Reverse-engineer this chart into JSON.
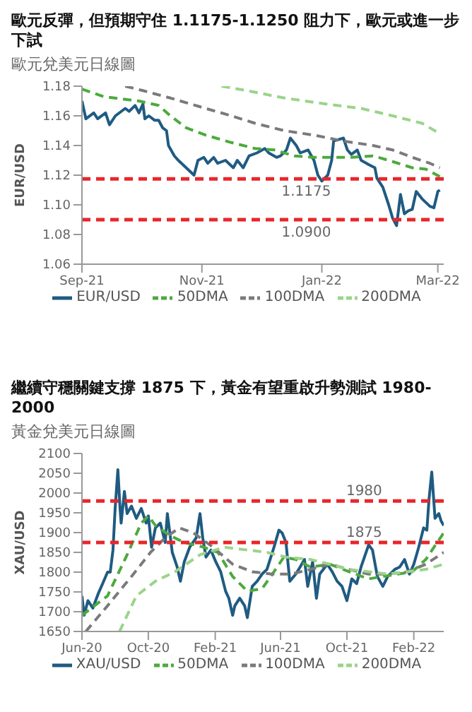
{
  "chart_data": [
    {
      "type": "line",
      "title": "歐元反彈，但預期守住 1.1175-1.1250 阻力下，歐元或進一步下試",
      "subtitle": "歐元兌美元日線圖",
      "ylabel": "EUR/USD",
      "xlim": [
        "2021-09-01",
        "2022-03-04"
      ],
      "xticks": [
        {
          "value": "2021-09-01",
          "label": "Sep-21"
        },
        {
          "value": "2021-11-01",
          "label": "Nov-21"
        },
        {
          "value": "2022-01-01",
          "label": "Jan-22"
        },
        {
          "value": "2022-03-01",
          "label": "Mar-22"
        }
      ],
      "ylim": [
        1.06,
        1.18
      ],
      "yticks": [
        1.06,
        1.08,
        {
          "value": 1.1,
          "label": "1.10"
        },
        1.12,
        1.14,
        1.16,
        1.18
      ],
      "legend": "bottom",
      "grid": false,
      "marker": "none",
      "ref_lines": [
        {
          "axis": "y",
          "value": 1.1175,
          "label": "1.1175",
          "color": "#e8262b",
          "line_style": "dashed"
        },
        {
          "axis": "y",
          "value": 1.09,
          "label": "1.0900",
          "color": "#e8262b",
          "line_style": "dashed"
        }
      ],
      "series": [
        {
          "name": "EUR/USD",
          "color": "#1f5b82",
          "line_style": "solid",
          "x": [
            "2021-09-01",
            "2021-09-03",
            "2021-09-07",
            "2021-09-09",
            "2021-09-13",
            "2021-09-15",
            "2021-09-18",
            "2021-09-23",
            "2021-09-25",
            "2021-09-28",
            "2021-09-30",
            "2021-10-02",
            "2021-10-03",
            "2021-10-05",
            "2021-10-08",
            "2021-10-10",
            "2021-10-12",
            "2021-10-14",
            "2021-10-15",
            "2021-10-18",
            "2021-10-20",
            "2021-10-24",
            "2021-10-28",
            "2021-10-30",
            "2021-11-02",
            "2021-11-04",
            "2021-11-07",
            "2021-11-09",
            "2021-11-13",
            "2021-11-17",
            "2021-11-19",
            "2021-11-22",
            "2021-11-25",
            "2021-11-29",
            "2021-12-03",
            "2021-12-05",
            "2021-12-09",
            "2021-12-11",
            "2021-12-14",
            "2021-12-16",
            "2021-12-19",
            "2021-12-21",
            "2021-12-25",
            "2021-12-28",
            "2021-12-30",
            "2022-01-01",
            "2022-01-04",
            "2022-01-06",
            "2022-01-07",
            "2022-01-12",
            "2022-01-14",
            "2022-01-16",
            "2022-01-19",
            "2022-01-21",
            "2022-01-25",
            "2022-01-28",
            "2022-01-29",
            "2022-02-01",
            "2022-02-04",
            "2022-02-06",
            "2022-02-08",
            "2022-02-10",
            "2022-02-12",
            "2022-02-14",
            "2022-02-16",
            "2022-02-18",
            "2022-02-21",
            "2022-02-25",
            "2022-02-27",
            "2022-03-01",
            "2022-03-02"
          ],
          "values": [
            1.17,
            1.158,
            1.162,
            1.158,
            1.162,
            1.154,
            1.16,
            1.165,
            1.163,
            1.167,
            1.162,
            1.168,
            1.158,
            1.16,
            1.157,
            1.157,
            1.152,
            1.15,
            1.14,
            1.133,
            1.13,
            1.125,
            1.12,
            1.13,
            1.132,
            1.128,
            1.132,
            1.128,
            1.13,
            1.125,
            1.13,
            1.125,
            1.133,
            1.135,
            1.138,
            1.135,
            1.132,
            1.133,
            1.137,
            1.145,
            1.14,
            1.135,
            1.137,
            1.13,
            1.12,
            1.116,
            1.12,
            1.13,
            1.143,
            1.145,
            1.137,
            1.134,
            1.137,
            1.13,
            1.127,
            1.125,
            1.118,
            1.112,
            1.1,
            1.091,
            1.086,
            1.107,
            1.094,
            1.096,
            1.097,
            1.109,
            1.104,
            1.099,
            1.098,
            1.109,
            1.11
          ]
        },
        {
          "name": "50DMA",
          "color": "#4caa3c",
          "line_style": "dashed",
          "x": [
            "2021-09-01",
            "2021-09-12",
            "2021-09-30",
            "2021-10-10",
            "2021-10-16",
            "2021-10-24",
            "2021-11-03",
            "2021-11-16",
            "2021-11-28",
            "2021-12-08",
            "2021-12-18",
            "2021-12-28",
            "2022-01-07",
            "2022-01-16",
            "2022-01-27",
            "2022-02-04",
            "2022-02-16",
            "2022-02-23",
            "2022-03-02"
          ],
          "values": [
            1.178,
            1.173,
            1.17,
            1.167,
            1.16,
            1.152,
            1.147,
            1.142,
            1.138,
            1.137,
            1.133,
            1.132,
            1.132,
            1.132,
            1.133,
            1.13,
            1.125,
            1.124,
            1.119
          ]
        },
        {
          "name": "100DMA",
          "color": "#7a7a7a",
          "line_style": "dashed",
          "x": [
            "2021-09-23",
            "2021-10-02",
            "2021-10-16",
            "2021-11-03",
            "2021-11-16",
            "2021-11-28",
            "2021-12-13",
            "2021-12-28",
            "2022-01-12",
            "2022-01-27",
            "2022-02-06",
            "2022-02-16",
            "2022-02-25",
            "2022-03-02"
          ],
          "values": [
            1.18,
            1.177,
            1.172,
            1.165,
            1.16,
            1.155,
            1.15,
            1.147,
            1.143,
            1.14,
            1.137,
            1.132,
            1.128,
            1.125
          ]
        },
        {
          "name": "200DMA",
          "color": "#9bd48a",
          "line_style": "dashed",
          "x": [
            "2021-11-11",
            "2021-11-24",
            "2021-12-13",
            "2022-01-03",
            "2022-01-21",
            "2022-02-06",
            "2022-02-21",
            "2022-03-02"
          ],
          "values": [
            1.18,
            1.177,
            1.172,
            1.168,
            1.165,
            1.16,
            1.155,
            1.148
          ]
        }
      ]
    },
    {
      "type": "line",
      "title": "繼續守穩關鍵支撐 1875 下，黃金有望重啟升勢測試 1980-2000",
      "subtitle": "黃金兌美元日線圖",
      "ylabel": "XAU/USD",
      "xlim": [
        "2020-06-01",
        "2022-03-28"
      ],
      "xticks": [
        {
          "value": "2020-06-01",
          "label": "Jun-20"
        },
        {
          "value": "2020-10-01",
          "label": "Oct-20"
        },
        {
          "value": "2021-02-01",
          "label": "Feb-21"
        },
        {
          "value": "2021-06-01",
          "label": "Jun-21"
        },
        {
          "value": "2021-10-01",
          "label": "Oct-21"
        },
        {
          "value": "2022-02-01",
          "label": "Feb-22"
        }
      ],
      "ylim": [
        1650,
        2100
      ],
      "yticks": [
        1650,
        1700,
        1750,
        1800,
        1850,
        1900,
        1950,
        2000,
        2050,
        2100
      ],
      "legend": "bottom",
      "grid": false,
      "marker": "none",
      "ref_lines": [
        {
          "axis": "y",
          "value": 1980,
          "label": "1980",
          "color": "#e8262b",
          "line_style": "dashed"
        },
        {
          "axis": "y",
          "value": 1875,
          "label": "1875",
          "color": "#e8262b",
          "line_style": "dashed"
        }
      ],
      "series": [
        {
          "name": "XAU/USD",
          "color": "#1f5b82",
          "line_style": "solid",
          "x": [
            "2020-06-01",
            "2020-06-05",
            "2020-06-12",
            "2020-06-21",
            "2020-07-01",
            "2020-07-09",
            "2020-07-18",
            "2020-07-23",
            "2020-07-28",
            "2020-08-01",
            "2020-08-06",
            "2020-08-10",
            "2020-08-12",
            "2020-08-18",
            "2020-08-23",
            "2020-08-31",
            "2020-09-09",
            "2020-09-18",
            "2020-09-27",
            "2020-10-01",
            "2020-10-07",
            "2020-10-14",
            "2020-10-23",
            "2020-11-01",
            "2020-11-05",
            "2020-11-14",
            "2020-11-23",
            "2020-11-29",
            "2020-12-06",
            "2020-12-16",
            "2020-12-28",
            "2021-01-04",
            "2021-01-09",
            "2021-01-15",
            "2021-01-24",
            "2021-02-02",
            "2021-02-11",
            "2021-02-20",
            "2021-02-26",
            "2021-03-05",
            "2021-03-09",
            "2021-03-18",
            "2021-03-27",
            "2021-04-01",
            "2021-04-10",
            "2021-04-19",
            "2021-04-28",
            "2021-05-07",
            "2021-05-20",
            "2021-05-29",
            "2021-06-04",
            "2021-06-11",
            "2021-06-18",
            "2021-06-29",
            "2021-07-07",
            "2021-07-15",
            "2021-07-21",
            "2021-07-30",
            "2021-08-06",
            "2021-08-12",
            "2021-08-26",
            "2021-09-04",
            "2021-09-13",
            "2021-09-22",
            "2021-10-01",
            "2021-10-10",
            "2021-10-19",
            "2021-10-27",
            "2021-11-10",
            "2021-11-17",
            "2021-11-26",
            "2021-12-06",
            "2021-12-15",
            "2021-12-28",
            "2022-01-06",
            "2022-01-15",
            "2022-01-24",
            "2022-02-01",
            "2022-02-10",
            "2022-02-19",
            "2022-02-25",
            "2022-03-01",
            "2022-03-06",
            "2022-03-12",
            "2022-03-19",
            "2022-03-23",
            "2022-03-28"
          ],
          "values": [
            1740,
            1691,
            1728,
            1709,
            1746,
            1771,
            1800,
            1800,
            1856,
            1961,
            2059,
            1961,
            1924,
            2004,
            1948,
            1967,
            1936,
            1961,
            1924,
            1942,
            1863,
            1912,
            1924,
            1875,
            1948,
            1850,
            1813,
            1777,
            1826,
            1863,
            1887,
            1948,
            1887,
            1838,
            1856,
            1826,
            1801,
            1752,
            1734,
            1691,
            1715,
            1734,
            1715,
            1685,
            1764,
            1777,
            1795,
            1807,
            1863,
            1906,
            1899,
            1875,
            1777,
            1795,
            1813,
            1832,
            1764,
            1826,
            1734,
            1795,
            1820,
            1801,
            1777,
            1764,
            1728,
            1783,
            1771,
            1813,
            1869,
            1856,
            1789,
            1764,
            1789,
            1807,
            1813,
            1832,
            1795,
            1820,
            1863,
            1912,
            1906,
            1985,
            2053,
            1936,
            1948,
            1930,
            1918
          ]
        },
        {
          "name": "50DMA",
          "color": "#4caa3c",
          "line_style": "dashed",
          "x": [
            "2020-06-01",
            "2020-07-18",
            "2020-08-23",
            "2020-09-18",
            "2020-10-01",
            "2020-10-14",
            "2020-11-09",
            "2020-12-06",
            "2021-01-11",
            "2021-02-06",
            "2021-03-05",
            "2021-04-01",
            "2021-04-28",
            "2021-05-20",
            "2021-06-07",
            "2021-06-29",
            "2021-07-26",
            "2021-08-31",
            "2021-10-05",
            "2021-11-10",
            "2021-12-06",
            "2022-01-02",
            "2022-01-29",
            "2022-02-23",
            "2022-03-16",
            "2022-03-28"
          ],
          "values": [
            1691,
            1740,
            1844,
            1924,
            1942,
            1918,
            1893,
            1875,
            1863,
            1850,
            1789,
            1752,
            1758,
            1801,
            1838,
            1832,
            1813,
            1820,
            1801,
            1783,
            1789,
            1795,
            1801,
            1832,
            1875,
            1899
          ]
        },
        {
          "name": "100DMA",
          "color": "#7a7a7a",
          "line_style": "dashed",
          "x": [
            "2020-06-08",
            "2020-07-18",
            "2020-08-31",
            "2020-10-05",
            "2020-11-01",
            "2020-11-27",
            "2020-12-23",
            "2021-01-28",
            "2021-03-05",
            "2021-04-10",
            "2021-05-16",
            "2021-06-20",
            "2021-07-26",
            "2021-08-31",
            "2021-10-05",
            "2021-11-10",
            "2021-12-15",
            "2022-01-20",
            "2022-02-23",
            "2022-03-28"
          ],
          "values": [
            1650,
            1715,
            1789,
            1850,
            1887,
            1912,
            1899,
            1863,
            1820,
            1801,
            1795,
            1795,
            1807,
            1820,
            1807,
            1795,
            1795,
            1801,
            1820,
            1850
          ]
        },
        {
          "name": "200DMA",
          "color": "#9bd48a",
          "line_style": "dashed",
          "x": [
            "2020-08-09",
            "2020-09-09",
            "2020-10-14",
            "2020-11-19",
            "2021-01-04",
            "2021-02-17",
            "2021-04-01",
            "2021-05-07",
            "2021-06-11",
            "2021-07-26",
            "2021-08-31",
            "2021-10-05",
            "2021-11-10",
            "2021-12-15",
            "2022-01-20",
            "2022-02-23",
            "2022-03-28"
          ],
          "values": [
            1650,
            1740,
            1777,
            1801,
            1844,
            1863,
            1856,
            1850,
            1838,
            1832,
            1820,
            1807,
            1801,
            1795,
            1801,
            1807,
            1820
          ]
        }
      ]
    }
  ]
}
